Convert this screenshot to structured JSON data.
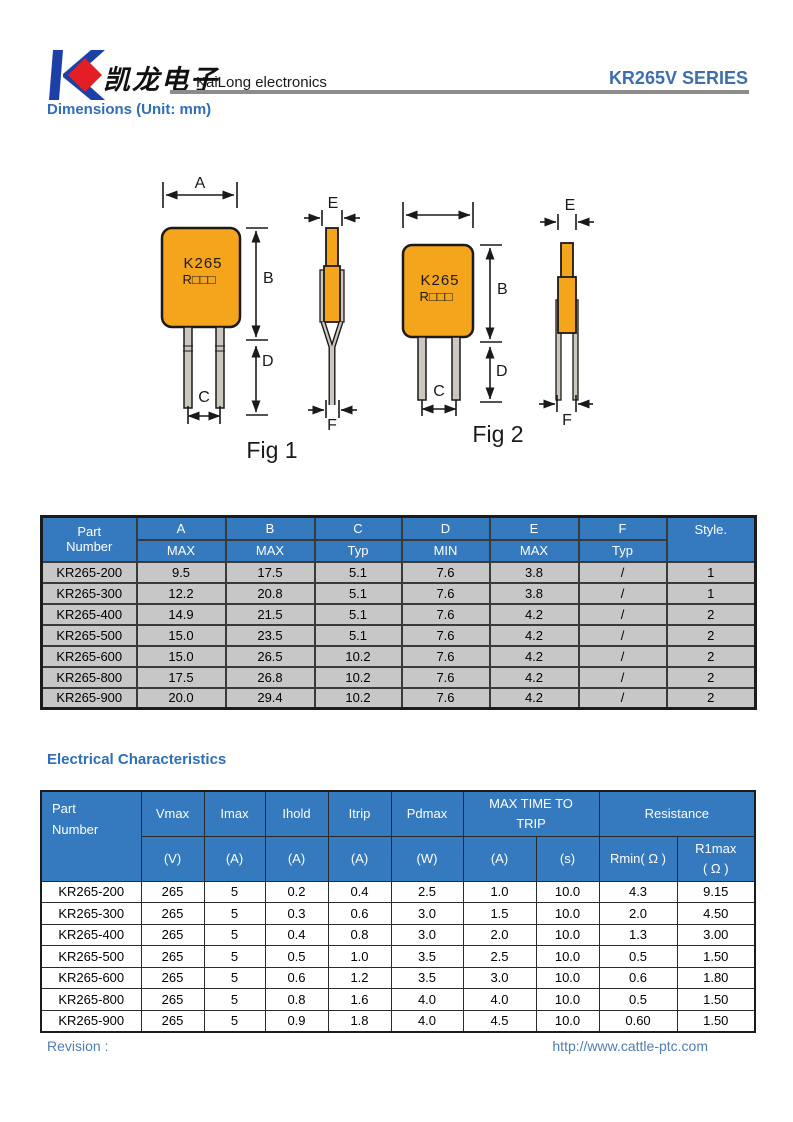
{
  "header": {
    "logo_text_cn": "凯龙电子",
    "company": "KaiLong electronics",
    "series": "KR265V SERIES"
  },
  "sections": {
    "dimensions_title": "Dimensions (Unit: mm)",
    "electrical_title": "Electrical Characteristics"
  },
  "figures": {
    "fig1": {
      "caption": "Fig 1",
      "marking_line1": "K265",
      "marking_line2": "R□□□",
      "labels": {
        "a": "A",
        "b": "B",
        "c": "C",
        "d": "D",
        "e": "E",
        "f": "F"
      }
    },
    "fig2": {
      "caption": "Fig 2",
      "marking_line1": "K265",
      "marking_line2": "R□□□",
      "labels": {
        "b": "B",
        "c": "C",
        "d": "D",
        "e": "E",
        "f": "F"
      }
    }
  },
  "dimensions_table": {
    "header_row1": [
      "Part",
      "A",
      "B",
      "C",
      "D",
      "E",
      "F",
      "Style."
    ],
    "header_row2": [
      "Number",
      "MAX",
      "MAX",
      "Typ",
      "MIN",
      "MAX",
      "Typ"
    ],
    "rows": [
      [
        "KR265-200",
        "9.5",
        "17.5",
        "5.1",
        "7.6",
        "3.8",
        "/",
        "1"
      ],
      [
        "KR265-300",
        "12.2",
        "20.8",
        "5.1",
        "7.6",
        "3.8",
        "/",
        "1"
      ],
      [
        "KR265-400",
        "14.9",
        "21.5",
        "5.1",
        "7.6",
        "4.2",
        "/",
        "2"
      ],
      [
        "KR265-500",
        "15.0",
        "23.5",
        "5.1",
        "7.6",
        "4.2",
        "/",
        "2"
      ],
      [
        "KR265-600",
        "15.0",
        "26.5",
        "10.2",
        "7.6",
        "4.2",
        "/",
        "2"
      ],
      [
        "KR265-800",
        "17.5",
        "26.8",
        "10.2",
        "7.6",
        "4.2",
        "/",
        "2"
      ],
      [
        "KR265-900",
        "20.0",
        "29.4",
        "10.2",
        "7.6",
        "4.2",
        "/",
        "2"
      ]
    ]
  },
  "electrical_table": {
    "header": {
      "part_line1": "Part",
      "part_line2": "Number",
      "cols": [
        "Vmax",
        "Imax",
        "Ihold",
        "Itrip",
        "Pdmax"
      ],
      "max_time_line1": "MAX TIME TO",
      "max_time_line2": "TRIP",
      "resistance": "Resistance",
      "units": [
        "(V)",
        "(A)",
        "(A)",
        "(A)",
        "(W)",
        "(A)",
        "(s)"
      ],
      "rmin": "Rmin( Ω )",
      "r1max_line1": "R1max",
      "r1max_line2": "( Ω )"
    },
    "rows": [
      [
        "KR265-200",
        "265",
        "5",
        "0.2",
        "0.4",
        "2.5",
        "1.0",
        "10.0",
        "4.3",
        "9.15"
      ],
      [
        "KR265-300",
        "265",
        "5",
        "0.3",
        "0.6",
        "3.0",
        "1.5",
        "10.0",
        "2.0",
        "4.50"
      ],
      [
        "KR265-400",
        "265",
        "5",
        "0.4",
        "0.8",
        "3.0",
        "2.0",
        "10.0",
        "1.3",
        "3.00"
      ],
      [
        "KR265-500",
        "265",
        "5",
        "0.5",
        "1.0",
        "3.5",
        "2.5",
        "10.0",
        "0.5",
        "1.50"
      ],
      [
        "KR265-600",
        "265",
        "5",
        "0.6",
        "1.2",
        "3.5",
        "3.0",
        "10.0",
        "0.6",
        "1.80"
      ],
      [
        "KR265-800",
        "265",
        "5",
        "0.8",
        "1.6",
        "4.0",
        "4.0",
        "10.0",
        "0.5",
        "1.50"
      ],
      [
        "KR265-900",
        "265",
        "5",
        "0.9",
        "1.8",
        "4.0",
        "4.5",
        "10.0",
        "0.60",
        "1.50"
      ]
    ]
  },
  "footer": {
    "revision_label": "Revision :",
    "url": "http://www.cattle-ptc.com"
  },
  "colors": {
    "accent_blue": "#2E6FB7",
    "series_blue": "#3C6FAE",
    "table_header_blue": "#3579BE",
    "row_gray": "#C7C7C7",
    "divider_gray": "#8C8C8C",
    "body_orange": "#F4A51C",
    "lead_gray": "#CCC8C0",
    "logo_blue": "#1C3FA8",
    "logo_red": "#E31E24",
    "footer_blue": "#4F7DB5"
  }
}
